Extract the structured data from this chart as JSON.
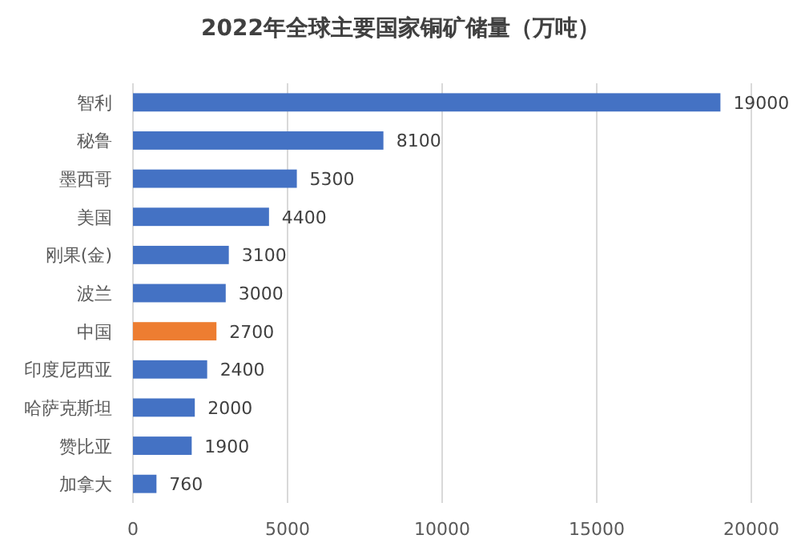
{
  "chart_data": {
    "type": "bar",
    "orientation": "horizontal",
    "title": "2022年全球主要国家铜矿储量（万吨）",
    "categories": [
      "智利",
      "秘鲁",
      "墨西哥",
      "美国",
      "刚果(金)",
      "波兰",
      "中国",
      "印度尼西亚",
      "哈萨克斯坦",
      "赞比亚",
      "加拿大"
    ],
    "values": [
      19000,
      8100,
      5300,
      4400,
      3100,
      3000,
      2700,
      2400,
      2000,
      1900,
      760
    ],
    "colors": [
      "#4472c4",
      "#4472c4",
      "#4472c4",
      "#4472c4",
      "#4472c4",
      "#4472c4",
      "#ed7d31",
      "#4472c4",
      "#4472c4",
      "#4472c4",
      "#4472c4"
    ],
    "xlim": [
      0,
      20000
    ],
    "xticks": [
      0,
      5000,
      10000,
      15000,
      20000
    ],
    "grid": "x",
    "data_labels": true
  }
}
